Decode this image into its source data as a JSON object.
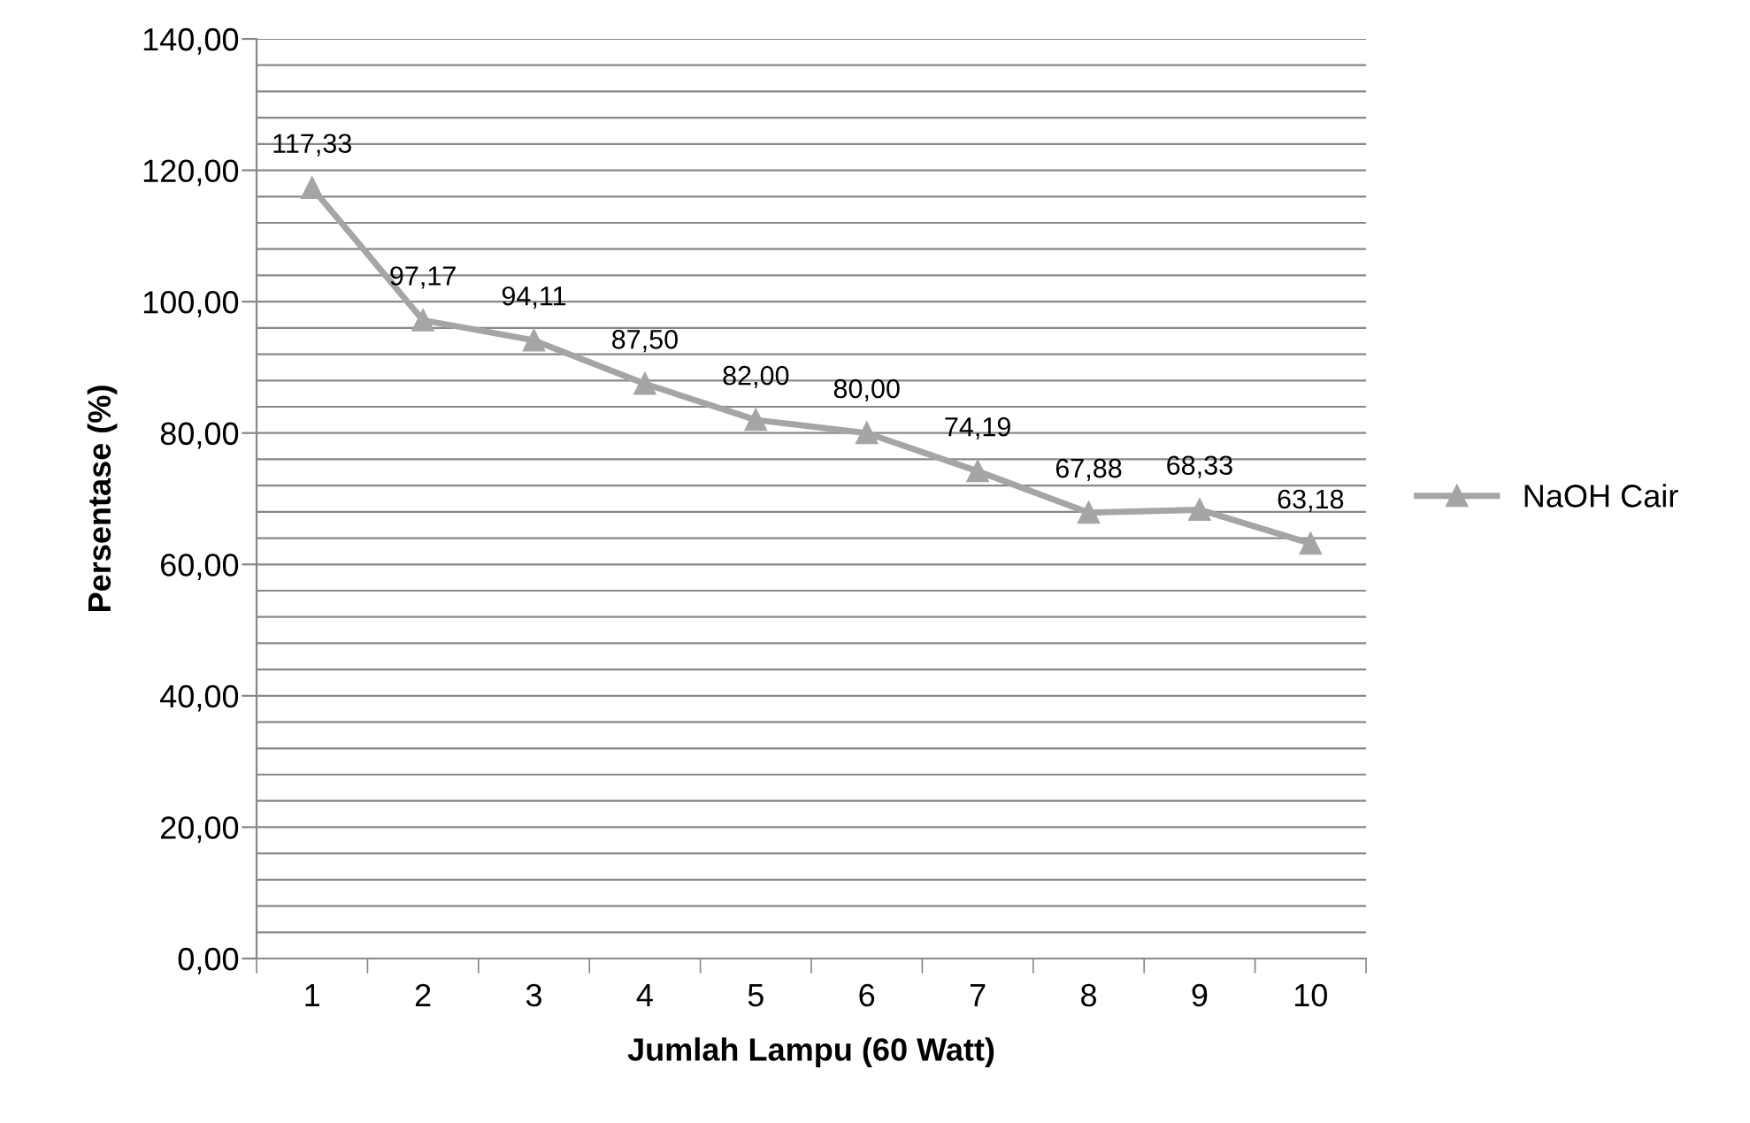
{
  "chart_data": {
    "type": "line",
    "xlabel": "Jumlah Lampu (60 Watt)",
    "ylabel": "Persentase (%)",
    "categories": [
      "1",
      "2",
      "3",
      "4",
      "5",
      "6",
      "7",
      "8",
      "9",
      "10"
    ],
    "series": [
      {
        "name": "NaOH Cair",
        "color": "#a5a5a5",
        "values": [
          117.33,
          97.17,
          94.11,
          87.5,
          82.0,
          80.0,
          74.19,
          67.88,
          68.33,
          63.18
        ],
        "value_labels": [
          "117,33",
          "97,17",
          "94,11",
          "87,50",
          "82,00",
          "80,00",
          "74,19",
          "67,88",
          "68,33",
          "63,18"
        ]
      }
    ],
    "ylim": [
      0,
      140
    ],
    "yticks": [
      {
        "value": 0,
        "label": "0,00"
      },
      {
        "value": 4,
        "label": null
      },
      {
        "value": 8,
        "label": null
      },
      {
        "value": 12,
        "label": null
      },
      {
        "value": 16,
        "label": null
      },
      {
        "value": 20,
        "label": "20,00"
      },
      {
        "value": 24,
        "label": null
      },
      {
        "value": 28,
        "label": null
      },
      {
        "value": 32,
        "label": null
      },
      {
        "value": 36,
        "label": null
      },
      {
        "value": 40,
        "label": "40,00"
      },
      {
        "value": 44,
        "label": null
      },
      {
        "value": 48,
        "label": null
      },
      {
        "value": 52,
        "label": null
      },
      {
        "value": 56,
        "label": null
      },
      {
        "value": 60,
        "label": "60,00"
      },
      {
        "value": 64,
        "label": null
      },
      {
        "value": 68,
        "label": null
      },
      {
        "value": 72,
        "label": null
      },
      {
        "value": 76,
        "label": null
      },
      {
        "value": 80,
        "label": "80,00"
      },
      {
        "value": 84,
        "label": null
      },
      {
        "value": 88,
        "label": null
      },
      {
        "value": 92,
        "label": null
      },
      {
        "value": 96,
        "label": null
      },
      {
        "value": 100,
        "label": "100,00"
      },
      {
        "value": 104,
        "label": null
      },
      {
        "value": 108,
        "label": null
      },
      {
        "value": 112,
        "label": null
      },
      {
        "value": 116,
        "label": null
      },
      {
        "value": 120,
        "label": "120,00"
      },
      {
        "value": 124,
        "label": null
      },
      {
        "value": 128,
        "label": null
      },
      {
        "value": 132,
        "label": null
      },
      {
        "value": 136,
        "label": null
      },
      {
        "value": 140,
        "label": "140,00"
      }
    ],
    "grid": "y",
    "legend": "right",
    "marker": "triangle",
    "line_style": "solid"
  }
}
